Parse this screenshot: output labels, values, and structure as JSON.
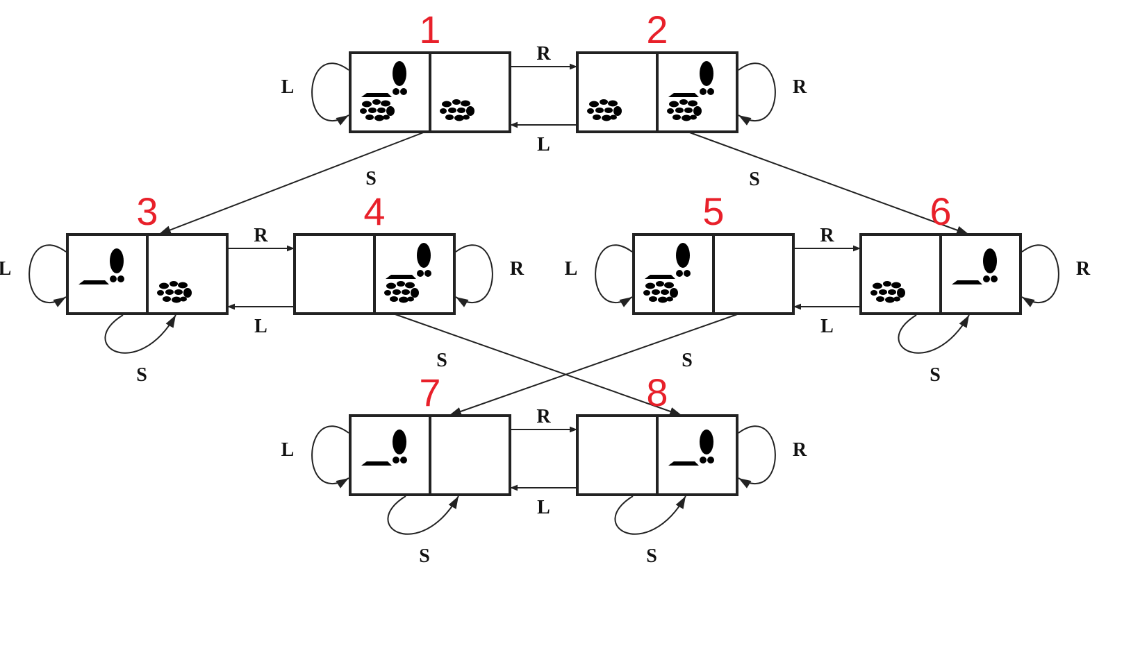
{
  "colors": {
    "state_number": "#e8202a",
    "stroke": "#222222",
    "dirt": "#c8c8c8"
  },
  "icons": {
    "agent": "vacuum-cleaner-icon",
    "dirt": "dirt-pile-icon"
  },
  "states": [
    {
      "id": "1",
      "number": "1",
      "agent": "left",
      "dirt": [
        true,
        true
      ]
    },
    {
      "id": "2",
      "number": "2",
      "agent": "right",
      "dirt": [
        true,
        true
      ]
    },
    {
      "id": "3",
      "number": "3",
      "agent": "left",
      "dirt": [
        false,
        true
      ]
    },
    {
      "id": "4",
      "number": "4",
      "agent": "right",
      "dirt": [
        false,
        true
      ]
    },
    {
      "id": "5",
      "number": "5",
      "agent": "left",
      "dirt": [
        true,
        false
      ]
    },
    {
      "id": "6",
      "number": "6",
      "agent": "right",
      "dirt": [
        true,
        false
      ]
    },
    {
      "id": "7",
      "number": "7",
      "agent": "left",
      "dirt": [
        false,
        false
      ]
    },
    {
      "id": "8",
      "number": "8",
      "agent": "right",
      "dirt": [
        false,
        false
      ]
    }
  ],
  "transitions": [
    {
      "from": "1",
      "to": "2",
      "action": "R"
    },
    {
      "from": "2",
      "to": "1",
      "action": "L"
    },
    {
      "from": "1",
      "to": "1",
      "action": "L"
    },
    {
      "from": "2",
      "to": "2",
      "action": "R"
    },
    {
      "from": "1",
      "to": "3",
      "action": "S"
    },
    {
      "from": "2",
      "to": "6",
      "action": "S"
    },
    {
      "from": "3",
      "to": "4",
      "action": "R"
    },
    {
      "from": "4",
      "to": "3",
      "action": "L"
    },
    {
      "from": "3",
      "to": "3",
      "action": "L"
    },
    {
      "from": "3",
      "to": "3",
      "action": "S"
    },
    {
      "from": "4",
      "to": "4",
      "action": "R"
    },
    {
      "from": "4",
      "to": "8",
      "action": "S"
    },
    {
      "from": "5",
      "to": "6",
      "action": "R"
    },
    {
      "from": "6",
      "to": "5",
      "action": "L"
    },
    {
      "from": "5",
      "to": "5",
      "action": "L"
    },
    {
      "from": "5",
      "to": "7",
      "action": "S"
    },
    {
      "from": "6",
      "to": "6",
      "action": "R"
    },
    {
      "from": "6",
      "to": "6",
      "action": "S"
    },
    {
      "from": "7",
      "to": "8",
      "action": "R"
    },
    {
      "from": "8",
      "to": "7",
      "action": "L"
    },
    {
      "from": "7",
      "to": "7",
      "action": "L"
    },
    {
      "from": "7",
      "to": "7",
      "action": "S"
    },
    {
      "from": "8",
      "to": "8",
      "action": "R"
    },
    {
      "from": "8",
      "to": "8",
      "action": "S"
    }
  ]
}
